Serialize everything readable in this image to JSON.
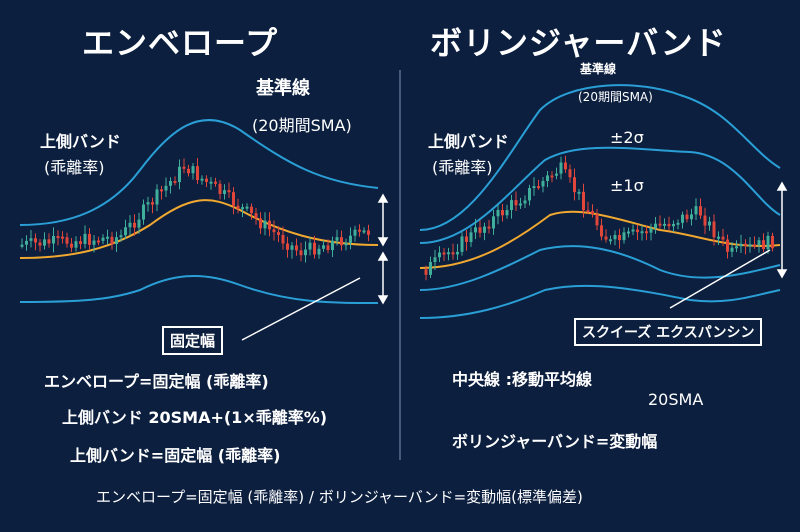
{
  "left": {
    "title": "エンベロープ",
    "sma_label": "基準線",
    "sma_sub": "(20期間SMA)",
    "band_label": "上側バンド",
    "band_sub": "(乖離率)",
    "fixed_width_box": "固定幅",
    "formulas": [
      "エンベロープ=固定幅 (乖離率)",
      "上側バンド 20SMA+(1×乖離率%)",
      "上側バンド=固定幅 (乖離率)"
    ]
  },
  "right": {
    "title": "ボリンジャーバンド",
    "sma_label": "基準線",
    "sma_sub": "(20期間SMA)",
    "band_label": "上側バンド",
    "band_sub": "(乖離率)",
    "sigma2": "±2σ",
    "sigma1": "±1σ",
    "squeeze_box": "スクイーズ エクスパンシン",
    "formulas": [
      "中央線 :移動平均線",
      "20SMA",
      "ボリンジャーバンド=変動幅"
    ]
  },
  "footer": "エンベロープ=固定幅 (乖離率) / ボリンジャーバンド=変動幅(標準偏差)",
  "colors": {
    "background": "#0c1f3f",
    "band": "#2a9fd6",
    "sma": "#f0a830",
    "candle_up": "#3fae9a",
    "candle_down": "#e0463a",
    "text": "#ffffff"
  }
}
